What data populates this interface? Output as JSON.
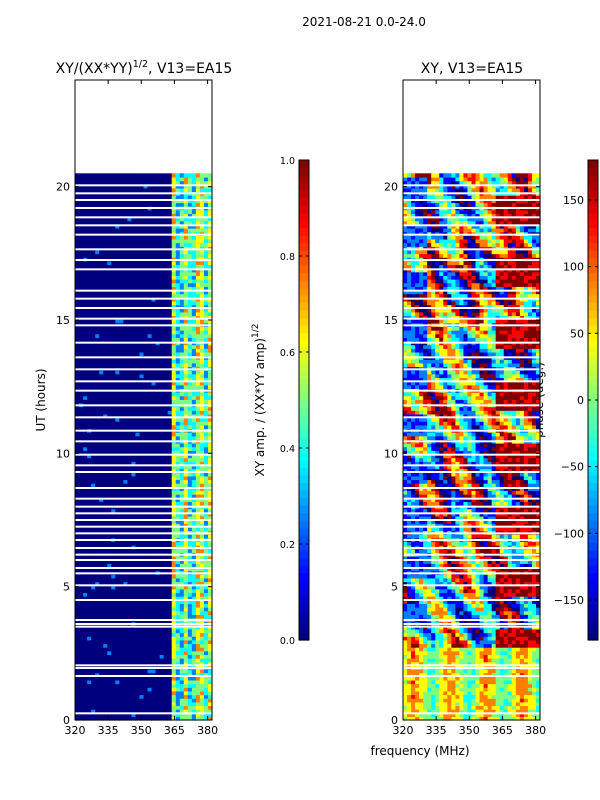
{
  "suptitle": "2021-08-21 0.0-24.0",
  "colors": {
    "jet": [
      "#00007f",
      "#0000ff",
      "#007fff",
      "#00ffff",
      "#7fff7f",
      "#ffff00",
      "#ff7f00",
      "#ff0000",
      "#7f0000"
    ],
    "gap": "#ffffff",
    "axis": "#000000"
  },
  "chart_data": [
    {
      "type": "heatmap",
      "panel": "amplitude",
      "title_main": "XY/(XX*YY)",
      "title_exp": "1/2",
      "title_rest": ", V13=EA15",
      "xlabel": "",
      "ylabel": "UT (hours)",
      "xlim": [
        320,
        382
      ],
      "ylim": [
        0,
        24
      ],
      "xticks": [
        320,
        335,
        350,
        365,
        380
      ],
      "yticks": [
        0,
        5,
        10,
        15,
        20
      ],
      "data_extent_hours": [
        0,
        20.5
      ],
      "colorbar": {
        "label_main": "XY amp. / (XX*YY amp)",
        "label_exp": "1/2",
        "range": [
          0.0,
          1.0
        ],
        "ticks": [
          "0.0",
          "0.2",
          "0.4",
          "0.6",
          "0.8",
          "1.0"
        ]
      }
    },
    {
      "type": "heatmap",
      "panel": "phase",
      "title": "XY, V13=EA15",
      "xlabel": "frequency (MHz)",
      "ylabel": "",
      "xlim": [
        320,
        382
      ],
      "ylim": [
        0,
        24
      ],
      "xticks": [
        320,
        335,
        350,
        365,
        380
      ],
      "yticks": [
        0,
        5,
        10,
        15,
        20
      ],
      "data_extent_hours": [
        0,
        20.5
      ],
      "colorbar": {
        "label": "phase (deg.)",
        "range": [
          -180,
          180
        ],
        "ticks": [
          "−150",
          "−100",
          "−50",
          "0",
          "50",
          "100",
          "150"
        ]
      }
    }
  ],
  "gap_hours": [
    0.25,
    1.65,
    1.95,
    2.05,
    3.5,
    3.6,
    3.75,
    4.5,
    5.05,
    5.5,
    5.7,
    6.0,
    6.2,
    6.45,
    6.75,
    7.0,
    7.25,
    7.5,
    7.75,
    8.0,
    8.3,
    8.7,
    9.3,
    9.55,
    9.95,
    10.45,
    10.85,
    11.35,
    11.8,
    12.35,
    12.7,
    13.15,
    13.6,
    14.15,
    14.8,
    15.05,
    15.45,
    15.8,
    16.1,
    16.9,
    17.25,
    17.65,
    18.2,
    18.55,
    18.85,
    19.2,
    19.5,
    19.75,
    20.05
  ]
}
